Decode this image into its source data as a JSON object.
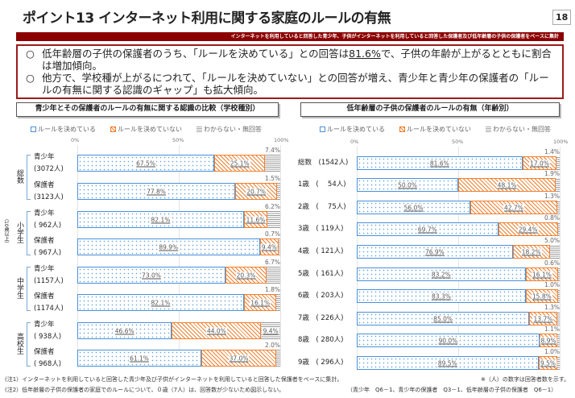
{
  "title": "ポイント13 インターネット利用に関する家庭のルールの有無",
  "page_number": "18",
  "band_text": "インターネットを利用していると回答した青少年、子供がインターネットを利用していると回答した保護者及び低年齢層の子供の保護者をベースに集計",
  "summary": {
    "bullet": "○",
    "line1a": "低年齢層の子供の保護者のうち、「ルールを決めている」との回答は",
    "line1u": "81.6%",
    "line1b": "で、子供の年齢が上がるとともに割合は増加傾向。",
    "line2": "他方で、学校種が上がるにつれて、「ルールを決めていない」との回答が増え、青少年と青少年の保護者の「ルールの有無に関する認識のギャップ」も拡大傾向。"
  },
  "legend": [
    "ルールを決めている",
    "ルールを決めていない",
    "わからない・無回答"
  ],
  "axis_ticks": [
    "0%",
    "50%",
    "100%"
  ],
  "colors": {
    "decided": "#4a90d9",
    "not_decided": "#f08030",
    "unknown": "#999999",
    "accent": "#8b0000"
  },
  "chart_data": [
    {
      "type": "bar",
      "stacked": true,
      "orientation": "horizontal",
      "title": "青少年とその保護者のルールの有無に関する認識の比較（学校種別）",
      "xlim": [
        0,
        100
      ],
      "groups": [
        {
          "label": "総数",
          "sub": ""
        },
        {
          "label": "小学生",
          "sub": "（10歳以上）"
        },
        {
          "label": "中学生",
          "sub": ""
        },
        {
          "label": "高校生",
          "sub": ""
        }
      ],
      "categories": [
        "青少年\n(3072人)",
        "保護者\n(3123人)",
        "青少年\n( 962人)",
        "保護者\n( 967人)",
        "青少年\n(1157人)",
        "保護者\n(1174人)",
        "青少年\n( 938人)",
        "保護者\n( 968人)"
      ],
      "series": [
        {
          "name": "ルールを決めている",
          "values": [
            67.5,
            77.8,
            82.1,
            89.9,
            73.0,
            82.1,
            46.6,
            61.1
          ]
        },
        {
          "name": "ルールを決めていない",
          "values": [
            25.1,
            20.7,
            11.6,
            9.4,
            20.3,
            16.1,
            44.0,
            37.0
          ]
        },
        {
          "name": "わからない・無回答",
          "values": [
            7.4,
            1.5,
            6.2,
            0.7,
            6.7,
            1.8,
            9.4,
            2.0
          ]
        }
      ]
    },
    {
      "type": "bar",
      "stacked": true,
      "orientation": "horizontal",
      "title": "低年齢層の子供の保護者のルールの有無（年齢別）",
      "xlim": [
        0,
        100
      ],
      "categories": [
        "総数　(1542人)",
        "1歳　(　 54人)",
        "2歳　(　 75人)",
        "3歳　( 119人)",
        "4歳　( 121人)",
        "5歳　( 161人)",
        "6歳　( 203人)",
        "7歳　( 226人)",
        "8歳　( 280人)",
        "9歳　( 296人)"
      ],
      "series": [
        {
          "name": "ルールを決めている",
          "values": [
            81.6,
            50.0,
            56.0,
            69.7,
            76.9,
            83.2,
            83.3,
            85.0,
            90.0,
            89.5
          ]
        },
        {
          "name": "ルールを決めていない",
          "values": [
            17.0,
            48.1,
            42.7,
            29.4,
            18.2,
            16.1,
            15.8,
            13.7,
            8.9,
            9.5
          ]
        },
        {
          "name": "わからない・無回答",
          "values": [
            1.4,
            1.9,
            1.3,
            0.8,
            5.0,
            0.6,
            1.0,
            1.3,
            1.1,
            1.0
          ]
        }
      ]
    }
  ],
  "notes": {
    "note1": "(注1）インターネットを利用していると回答した青少年及び子供がインターネットを利用していると回答した保護者をベースに集計。",
    "note2": "(注2）低年齢層の子供の保護者の家庭でのルールについて、０歳（7人）は、回答数が少ないため図示しない。",
    "note_right": "※（人）の数字は回答者数を示す。",
    "source": "（青少年　Q6－1、青少年の保護者　Q3－1、低年齢層の子供の保護者　Q6－1）"
  }
}
